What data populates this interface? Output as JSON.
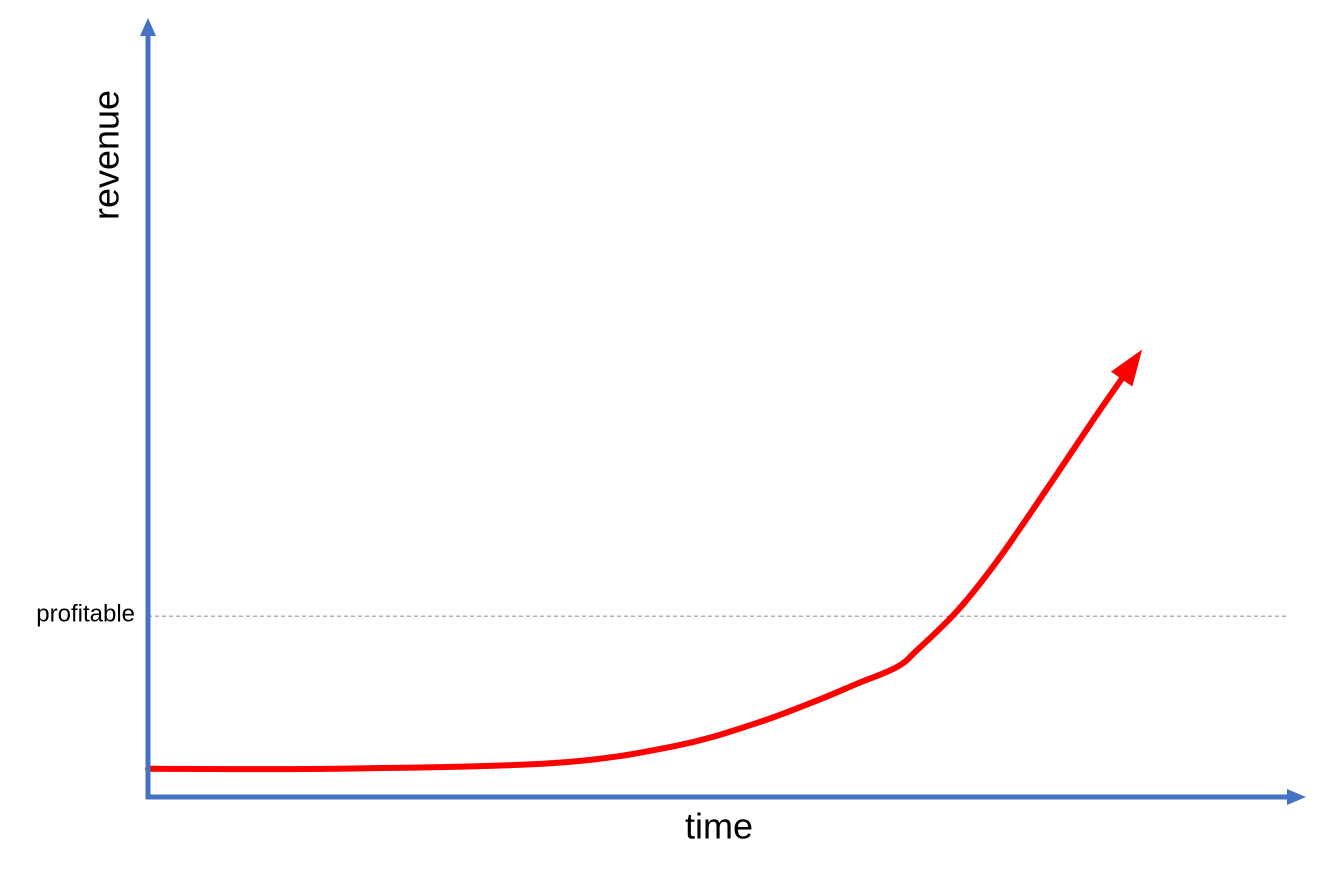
{
  "chart_data": {
    "type": "line",
    "title": "",
    "xlabel": "time",
    "ylabel": "revenue",
    "ylim": [
      0,
      100
    ],
    "xlim": [
      0,
      100
    ],
    "grid": false,
    "axis_color": "#4472C4",
    "reference_line": {
      "label": "profitable",
      "y": 32,
      "style": "dashed",
      "color": "#999999"
    },
    "series": [
      {
        "color": "#FF0000",
        "end_arrow": true,
        "x": [
          0,
          18,
          40,
          52,
          60,
          66,
          70,
          74,
          76,
          80,
          84,
          89,
          93.5,
          97
        ],
        "y": [
          5,
          5,
          6,
          9,
          13,
          17,
          20,
          23,
          26,
          33,
          42,
          55,
          67,
          76
        ]
      }
    ]
  }
}
